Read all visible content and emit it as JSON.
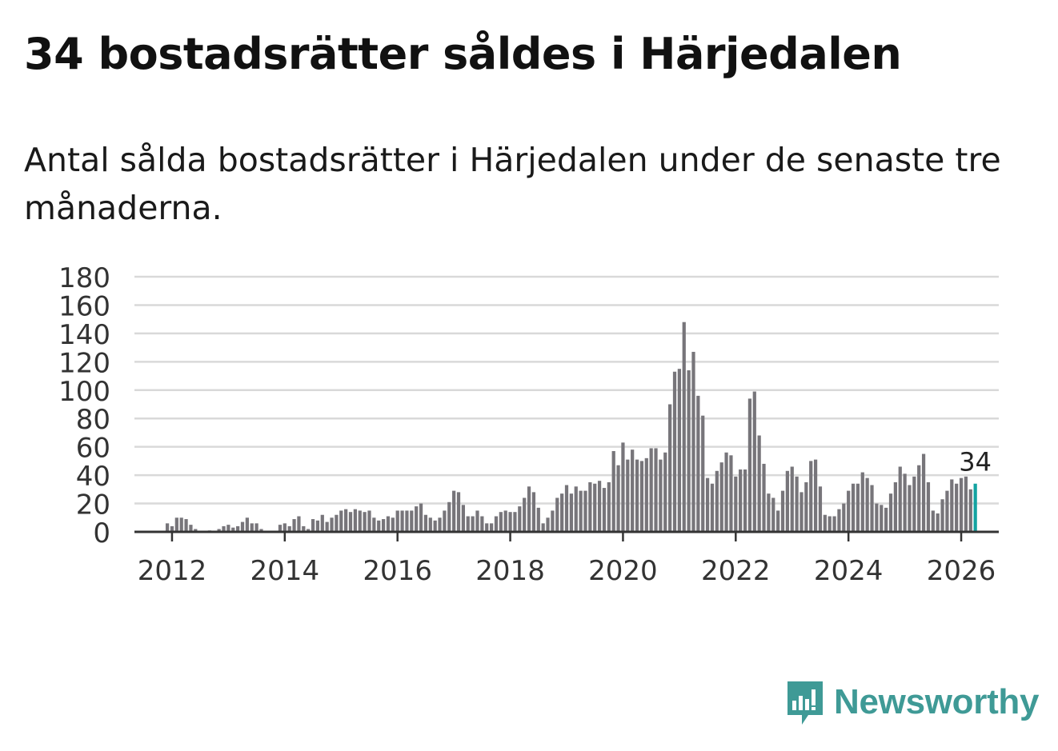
{
  "title": "34 bostadsrätter såldes i Härjedalen",
  "subtitle": "Antal sålda bostadsrätter i Härjedalen under de senaste tre månaderna.",
  "brand": {
    "name": "Newsworthy",
    "color": "#3f9a96"
  },
  "colors": {
    "bar": "#77757a",
    "highlight": "#13a3a1",
    "grid": "#d9d9d9",
    "axis": "#333333"
  },
  "chart_data": {
    "type": "bar",
    "title": "34 bostadsrätter såldes i Härjedalen",
    "xlabel": "",
    "ylabel": "",
    "ylim": [
      0,
      180
    ],
    "yticks": [
      "0",
      "20",
      "40",
      "60",
      "80",
      "100",
      "120",
      "140",
      "160",
      "180"
    ],
    "xticks": [
      "2012",
      "2014",
      "2016",
      "2018",
      "2020",
      "2022",
      "2024",
      "2026"
    ],
    "x_range": [
      "2011-05",
      "2026-09"
    ],
    "first_month": "2011-05",
    "highlight_label": "34",
    "values": [
      0,
      0,
      0,
      0,
      0,
      0,
      0,
      6,
      4,
      10,
      10,
      9,
      5,
      2,
      0,
      0,
      1,
      0,
      2,
      4,
      5,
      3,
      4,
      7,
      10,
      6,
      6,
      2,
      0,
      0,
      0,
      5,
      6,
      4,
      9,
      11,
      4,
      2,
      9,
      8,
      12,
      7,
      10,
      12,
      15,
      16,
      14,
      16,
      15,
      14,
      15,
      10,
      8,
      9,
      11,
      10,
      15,
      15,
      15,
      15,
      18,
      20,
      12,
      10,
      8,
      10,
      15,
      21,
      29,
      28,
      19,
      11,
      11,
      15,
      11,
      6,
      6,
      11,
      14,
      15,
      14,
      14,
      18,
      24,
      32,
      28,
      17,
      6,
      10,
      15,
      24,
      27,
      33,
      27,
      32,
      29,
      29,
      35,
      34,
      36,
      31,
      35,
      57,
      47,
      63,
      51,
      58,
      51,
      50,
      52,
      59,
      59,
      51,
      56,
      90,
      113,
      115,
      148,
      114,
      127,
      96,
      82,
      38,
      34,
      43,
      49,
      56,
      54,
      39,
      44,
      44,
      94,
      99,
      68,
      48,
      27,
      24,
      15,
      29,
      43,
      46,
      39,
      28,
      35,
      50,
      51,
      32,
      12,
      11,
      11,
      16,
      20,
      29,
      34,
      34,
      42,
      38,
      33,
      20,
      19,
      17,
      27,
      35,
      46,
      41,
      33,
      39,
      47,
      55,
      35,
      15,
      13,
      23,
      29,
      37,
      34,
      38,
      39,
      30,
      34
    ]
  }
}
